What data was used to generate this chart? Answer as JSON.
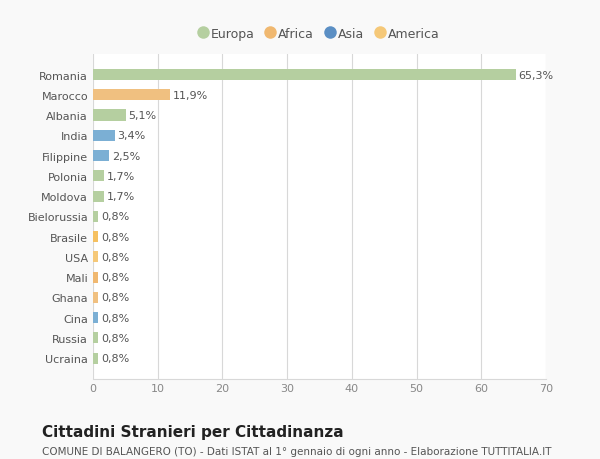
{
  "categories": [
    "Ucraina",
    "Russia",
    "Cina",
    "Ghana",
    "Mali",
    "USA",
    "Brasile",
    "Bielorussia",
    "Moldova",
    "Polonia",
    "Filippine",
    "India",
    "Albania",
    "Marocco",
    "Romania"
  ],
  "values": [
    0.8,
    0.8,
    0.8,
    0.8,
    0.8,
    0.8,
    0.8,
    0.8,
    1.7,
    1.7,
    2.5,
    3.4,
    5.1,
    11.9,
    65.3
  ],
  "bar_colors": [
    "#b5cfa0",
    "#b5cfa0",
    "#7bafd4",
    "#f0c080",
    "#f0b870",
    "#f5c878",
    "#f5c060",
    "#b5cfa0",
    "#b5cfa0",
    "#b5cfa0",
    "#7bafd4",
    "#7bafd4",
    "#b5cfa0",
    "#f0c080",
    "#b5cfa0"
  ],
  "labels": [
    "0,8%",
    "0,8%",
    "0,8%",
    "0,8%",
    "0,8%",
    "0,8%",
    "0,8%",
    "0,8%",
    "1,7%",
    "1,7%",
    "2,5%",
    "3,4%",
    "5,1%",
    "11,9%",
    "65,3%"
  ],
  "legend_labels": [
    "Europa",
    "Africa",
    "Asia",
    "America"
  ],
  "legend_colors": [
    "#b5cfa0",
    "#f0b870",
    "#5b8fc4",
    "#f5c878"
  ],
  "title": "Cittadini Stranieri per Cittadinanza",
  "subtitle": "COMUNE DI BALANGERO (TO) - Dati ISTAT al 1° gennaio di ogni anno - Elaborazione TUTTITALIA.IT",
  "xlim": [
    0,
    70
  ],
  "xticks": [
    0,
    10,
    20,
    30,
    40,
    50,
    60,
    70
  ],
  "background_color": "#f9f9f9",
  "plot_bg_color": "#ffffff",
  "grid_color": "#d8d8d8",
  "text_color": "#555555",
  "title_color": "#222222",
  "label_fontsize": 8,
  "tick_fontsize": 8,
  "legend_fontsize": 9,
  "title_fontsize": 11,
  "subtitle_fontsize": 7.5,
  "bar_height": 0.55
}
